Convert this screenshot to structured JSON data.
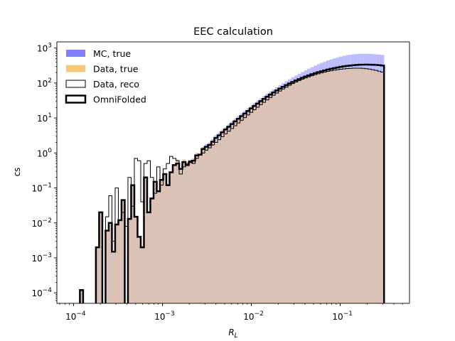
{
  "chart_data": {
    "type": "histogram",
    "title": "EEC calculation",
    "xlabel": "R",
    "xlabel_sub": "L",
    "ylabel": "cs",
    "x_scale": "log",
    "y_scale": "log",
    "xlim": [
      6.5e-05,
      0.6
    ],
    "ylim": [
      5e-05,
      1500
    ],
    "x_ticks": [
      {
        "value": 0.0001,
        "base": "10",
        "exp": "−4"
      },
      {
        "value": 0.001,
        "base": "10",
        "exp": "−3"
      },
      {
        "value": 0.01,
        "base": "10",
        "exp": "−2"
      },
      {
        "value": 0.1,
        "base": "10",
        "exp": "−1"
      }
    ],
    "y_ticks": [
      {
        "value": 0.0001,
        "base": "10",
        "exp": "−4"
      },
      {
        "value": 0.001,
        "base": "10",
        "exp": "−3"
      },
      {
        "value": 0.01,
        "base": "10",
        "exp": "−2"
      },
      {
        "value": 0.1,
        "base": "10",
        "exp": "−1"
      },
      {
        "value": 1,
        "base": "10",
        "exp": "0"
      },
      {
        "value": 10,
        "base": "10",
        "exp": "1"
      },
      {
        "value": 100,
        "base": "10",
        "exp": "2"
      },
      {
        "value": 1000,
        "base": "10",
        "exp": "3"
      }
    ],
    "legend_position": "upper-left",
    "bins": {
      "log_min": -4.0,
      "log_max": -0.4,
      "count": 100
    },
    "series": [
      {
        "name": "MC, true",
        "style": "filled",
        "color": "#7f7fff",
        "values": [
          0,
          0,
          0.00012,
          0,
          0,
          0,
          0,
          0.002,
          0.02,
          0,
          0.006,
          0.01,
          0.0015,
          0.009,
          0.012,
          0.045,
          0,
          0.013,
          0.12,
          0.015,
          0.004,
          0.002,
          0.2,
          0.02,
          0.05,
          0.15,
          0.08,
          0.17,
          0.25,
          0.12,
          0.28,
          0.45,
          0.65,
          0.35,
          0.65,
          0.45,
          0.6,
          0.7,
          1.0,
          0.9,
          1.5,
          1.8,
          2.0,
          2.5,
          3.2,
          3.8,
          4.6,
          5.5,
          6.7,
          8.0,
          9.5,
          11.3,
          13.5,
          16,
          19,
          22.5,
          26.5,
          31,
          36.5,
          42.5,
          49.5,
          57,
          66,
          76,
          87,
          99,
          113,
          128,
          145,
          164,
          185,
          207,
          231,
          257,
          285,
          315,
          346,
          378,
          411,
          444,
          477,
          510,
          542,
          573,
          601,
          627,
          649,
          667,
          680,
          688,
          692,
          691,
          686,
          677,
          665,
          651,
          636,
          0,
          0,
          0
        ]
      },
      {
        "name": "Data, true",
        "style": "filled",
        "color": "#f8c572",
        "values": [
          0,
          0,
          0.00012,
          0,
          0,
          0,
          0,
          0.002,
          0.02,
          0,
          0.006,
          0.01,
          0.0015,
          0.009,
          0.012,
          0.045,
          0,
          0.013,
          0.12,
          0.015,
          0.004,
          0.002,
          0.2,
          0.02,
          0.05,
          0.15,
          0.08,
          0.17,
          0.25,
          0.12,
          0.28,
          0.45,
          0.65,
          0.35,
          0.65,
          0.45,
          0.6,
          0.7,
          1.0,
          0.9,
          1.4,
          1.6,
          1.8,
          2.2,
          2.8,
          3.3,
          4.0,
          4.8,
          5.8,
          6.9,
          8.2,
          9.8,
          11.6,
          13.7,
          16.2,
          19,
          22.3,
          26,
          30.3,
          35.1,
          40.5,
          46.6,
          53.3,
          60.6,
          68.5,
          77,
          86,
          95.5,
          105.5,
          116,
          127,
          138,
          149,
          160,
          171,
          182,
          193,
          204,
          214,
          224,
          233,
          241,
          248,
          254,
          259,
          263,
          266,
          267,
          266,
          263,
          258,
          251,
          242,
          232,
          220,
          207,
          193,
          0,
          0,
          0
        ]
      },
      {
        "name": "Data, reco",
        "style": "step",
        "color": "#000000",
        "lw": 1,
        "values": [
          0,
          0,
          0.00012,
          0,
          0,
          0,
          0,
          0.002,
          0.02,
          0,
          0.015,
          0.06,
          0.003,
          0.1,
          0.012,
          0.02,
          0.008,
          0.2,
          0.03,
          0.7,
          0.6,
          0.04,
          0.5,
          0.6,
          0.2,
          0.07,
          0.4,
          0.12,
          0.35,
          0.5,
          0.8,
          0.7,
          0.6,
          0.25,
          0.4,
          0.5,
          0.6,
          0.5,
          0.7,
          0.9,
          1.0,
          1.2,
          1.4,
          1.7,
          2.0,
          2.4,
          2.9,
          3.5,
          4.2,
          5.0,
          6.0,
          7.2,
          8.6,
          10.2,
          12.2,
          14.5,
          17.2,
          20.3,
          24,
          28.2,
          33,
          38.5,
          44.7,
          51.6,
          59.2,
          67.5,
          76.5,
          86.2,
          96.5,
          107,
          118,
          129,
          140,
          151,
          162,
          173,
          184,
          195,
          205,
          215,
          224,
          233,
          241,
          248,
          254,
          259,
          263,
          265,
          266,
          265,
          262,
          257,
          250,
          241,
          230,
          218,
          205,
          0,
          0,
          0
        ]
      },
      {
        "name": "OmniFolded",
        "style": "step",
        "color": "#000000",
        "lw": 2.5,
        "values": [
          0,
          0,
          0.00012,
          0,
          0,
          0,
          0,
          0.002,
          0.02,
          0,
          0.006,
          0.01,
          0.0015,
          0.009,
          0.012,
          0.045,
          0,
          0.013,
          0.12,
          0.015,
          0.004,
          0.002,
          0.2,
          0.02,
          0.05,
          0.15,
          0.08,
          0.17,
          0.25,
          0.12,
          0.28,
          0.45,
          0.5,
          0.35,
          0.55,
          0.45,
          0.55,
          0.6,
          0.85,
          0.9,
          1.3,
          1.5,
          1.7,
          2.1,
          2.7,
          3.2,
          3.9,
          4.7,
          5.6,
          6.7,
          8.0,
          9.5,
          11.3,
          13.4,
          15.9,
          18.8,
          22.1,
          25.9,
          30.3,
          35.2,
          40.7,
          46.9,
          53.7,
          61.2,
          69.3,
          78,
          87,
          97,
          107,
          118,
          129,
          141,
          153,
          165,
          178,
          191,
          204,
          217,
          230,
          243,
          255,
          267,
          279,
          290,
          300,
          309,
          317,
          324,
          329,
          333,
          336,
          337,
          336,
          334,
          330,
          324,
          317,
          0,
          0,
          0
        ]
      }
    ]
  }
}
